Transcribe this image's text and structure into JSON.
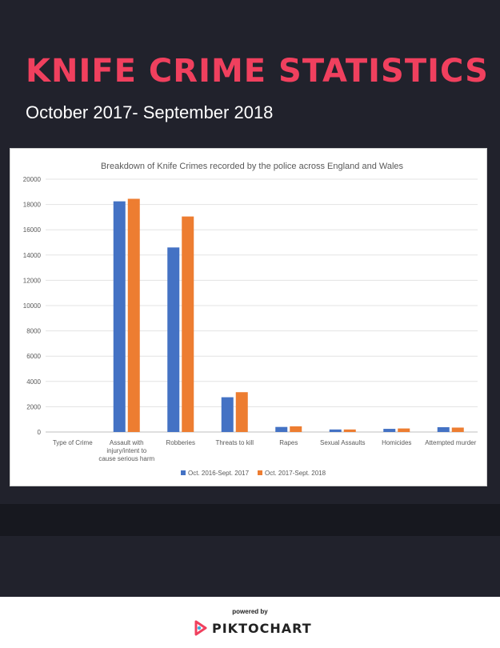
{
  "header": {
    "title": "KNIFE CRIME STATISTICS",
    "subtitle": "October 2017- September 2018"
  },
  "chart_data": {
    "type": "bar",
    "title": "Breakdown of Knife Crimes recorded by the police across England and Wales",
    "categories": [
      [
        "Type of Crime"
      ],
      [
        "Assault with",
        "injury/intent to",
        "cause serious harm"
      ],
      [
        "Robberies"
      ],
      [
        "Threats to kill"
      ],
      [
        "Rapes"
      ],
      [
        "Sexual Assaults"
      ],
      [
        "Homicides"
      ],
      [
        "Attempted murder"
      ]
    ],
    "series": [
      {
        "name": "Oct. 2016-Sept. 2017",
        "color": "#4472c4",
        "values": [
          0,
          18250,
          14600,
          2750,
          400,
          200,
          250,
          380
        ]
      },
      {
        "name": "Oct. 2017-Sept. 2018",
        "color": "#ed7d31",
        "values": [
          0,
          18450,
          17050,
          3150,
          450,
          200,
          280,
          350
        ]
      }
    ],
    "ylim": [
      0,
      20000
    ],
    "yticks": [
      "0",
      "2000",
      "4000",
      "6000",
      "8000",
      "10000",
      "12000",
      "14000",
      "16000",
      "18000",
      "20000"
    ],
    "grid": true,
    "legend": "bottom"
  },
  "footer": {
    "powered_by": "powered by",
    "brand": "PIKTOCHART",
    "brand_color": "#f0405e"
  }
}
